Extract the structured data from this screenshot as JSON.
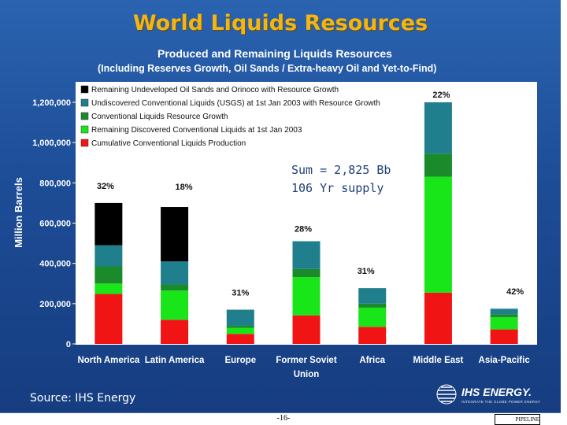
{
  "slide_title": "World Liquids Resources",
  "source": "Source: IHS Energy",
  "page_number": "-16-",
  "logo": {
    "name": "IHS ENERGY.",
    "tagline": "INTEGRATE THE GLOBE POWER ENERGY",
    "icon": "ihs-globe-icon"
  },
  "corner_mark_text": "PIPELINE",
  "colors": {
    "black": "#000000",
    "teal": "#1f7f8c",
    "dark_green": "#1a8a2a",
    "bright_green": "#19e619",
    "red": "#f01414",
    "plot_bg": "#ffffff",
    "title_gold": "#f2b515"
  },
  "chart_data": {
    "type": "bar",
    "stacked": true,
    "title": "Produced and Remaining Liquids Resources",
    "subtitle": "(Including Reserves Growth, Oil Sands / Extra-heavy Oil and Yet-to-Find)",
    "ylabel": "Million Barrels",
    "xlabel": "",
    "ylim": [
      0,
      1200000
    ],
    "yticks": [
      0,
      200000,
      400000,
      600000,
      800000,
      1000000,
      1200000
    ],
    "ytick_labels": [
      "0",
      "200,000",
      "400,000",
      "600,000",
      "800,000",
      "1,000,000",
      "1,200,000"
    ],
    "categories": [
      "North America",
      "Latin America",
      "Europe",
      "Former Soviet\nUnion",
      "Africa",
      "Middle East",
      "Asia-Pacific"
    ],
    "series": [
      {
        "name": "Cumulative Conventional Liquids Production",
        "color": "#f01414",
        "values": [
          248000,
          120000,
          50000,
          142000,
          85000,
          255000,
          72000
        ]
      },
      {
        "name": "Remaining Discovered Conventional Liquids at 1st Jan 2003",
        "color": "#19e619",
        "values": [
          52000,
          145000,
          30000,
          190000,
          95000,
          575000,
          60000
        ]
      },
      {
        "name": "Conventional Liquids Resource Growth",
        "color": "#1a8a2a",
        "values": [
          85000,
          30000,
          10000,
          40000,
          20000,
          115000,
          15000
        ]
      },
      {
        "name": "Undiscovered Conventional Liquids (USGS) at 1st Jan 2003 with Resource Growth",
        "color": "#1f7f8c",
        "values": [
          105000,
          115000,
          80000,
          138000,
          77000,
          255000,
          28000
        ]
      },
      {
        "name": "Remaining Undeveloped Oil Sands and Orinoco with Resource Growth",
        "color": "#000000",
        "values": [
          210000,
          270000,
          0,
          0,
          0,
          0,
          0
        ]
      }
    ],
    "legend_order": [
      4,
      3,
      2,
      1,
      0
    ],
    "legend_position": "top-left",
    "bar_percent_labels": [
      "32%",
      "18%",
      "31%",
      "28%",
      "31%",
      "22%",
      "42%"
    ],
    "annotation": {
      "line1": "Sum = 2,825 Bb",
      "line2": "106 Yr supply"
    }
  }
}
